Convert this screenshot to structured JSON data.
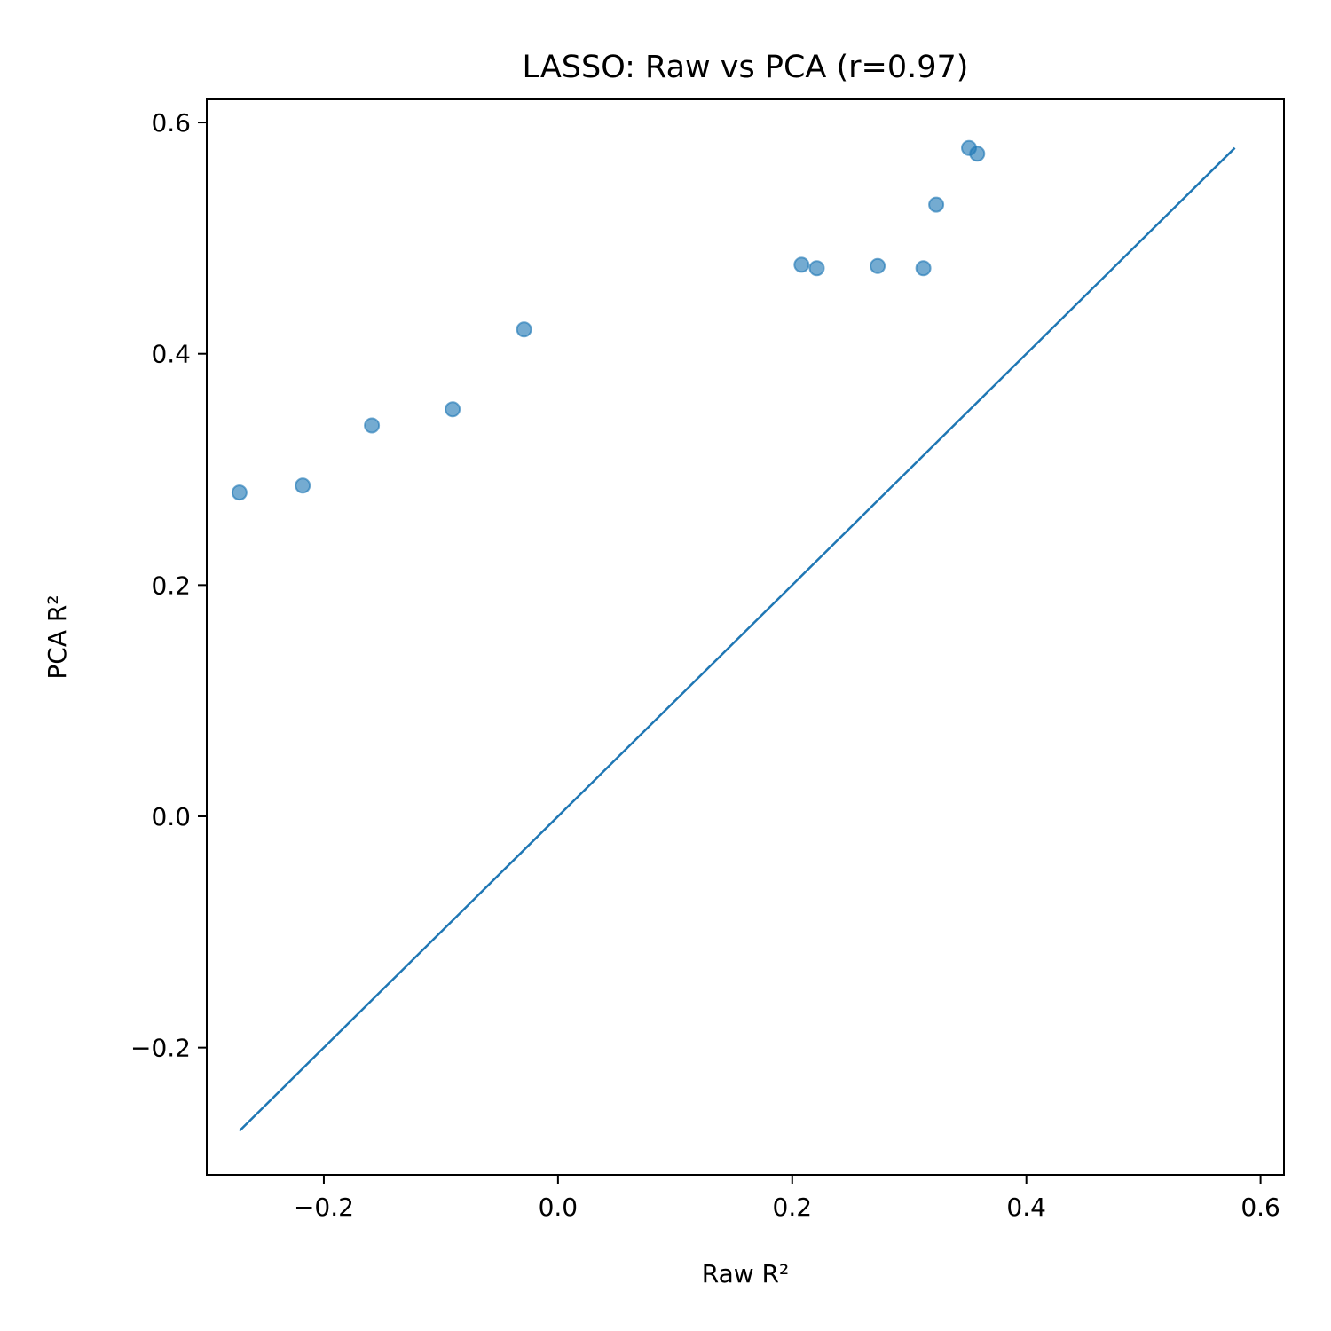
{
  "chart_data": {
    "type": "scatter",
    "title": "LASSO: Raw vs PCA (r=0.97)",
    "xlabel": "Raw R²",
    "ylabel": "PCA R²",
    "xlim": [
      -0.3,
      0.62
    ],
    "ylim": [
      -0.31,
      0.62
    ],
    "xticks": [
      {
        "value": -0.2,
        "label": "−0.2"
      },
      {
        "value": 0.0,
        "label": "0.0"
      },
      {
        "value": 0.2,
        "label": "0.2"
      },
      {
        "value": 0.4,
        "label": "0.4"
      },
      {
        "value": 0.6,
        "label": "0.6"
      }
    ],
    "yticks": [
      {
        "value": -0.2,
        "label": "−0.2"
      },
      {
        "value": 0.0,
        "label": "0.0"
      },
      {
        "value": 0.2,
        "label": "0.2"
      },
      {
        "value": 0.4,
        "label": "0.4"
      },
      {
        "value": 0.6,
        "label": "0.6"
      }
    ],
    "series": [
      {
        "kind": "scatter",
        "color": "#1f77b4",
        "x": [
          -0.272,
          -0.218,
          -0.159,
          -0.09,
          -0.029,
          0.208,
          0.221,
          0.273,
          0.312,
          0.323,
          0.351,
          0.358
        ],
        "y": [
          0.28,
          0.286,
          0.338,
          0.352,
          0.421,
          0.477,
          0.474,
          0.476,
          0.474,
          0.529,
          0.578,
          0.573
        ]
      },
      {
        "kind": "line",
        "color": "#1f77b4",
        "x": [
          -0.272,
          0.578
        ],
        "y": [
          -0.272,
          0.578
        ]
      }
    ],
    "grid": false,
    "legend": "none"
  }
}
